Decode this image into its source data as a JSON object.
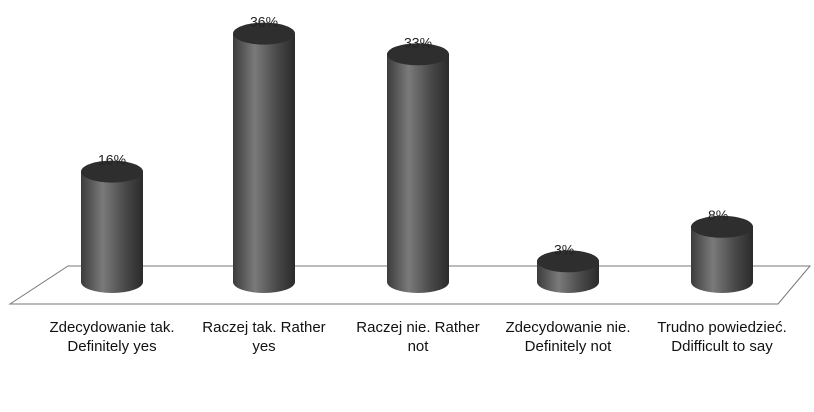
{
  "chart_data": {
    "type": "bar",
    "title": "",
    "xlabel": "",
    "ylabel": "",
    "ylim": [
      0,
      40
    ],
    "grid": false,
    "categories": [
      "Zdecydowanie tak. Definitely yes",
      "Raczej tak. Rather yes",
      "Raczej nie. Rather not",
      "Zdecydowanie nie. Definitely not",
      "Trudno powiedzieć. Ddifficult to say"
    ],
    "values": [
      16,
      36,
      33,
      3,
      8
    ],
    "value_labels": [
      "16%",
      "36%",
      "33%",
      "3%",
      "8%"
    ],
    "colors": {
      "bar": "#4a4a4a",
      "bar_highlight": "#7a7a7a",
      "bar_top": "#2e2e2e",
      "floor": "#ffffff",
      "floor_stroke": "#777777"
    }
  }
}
